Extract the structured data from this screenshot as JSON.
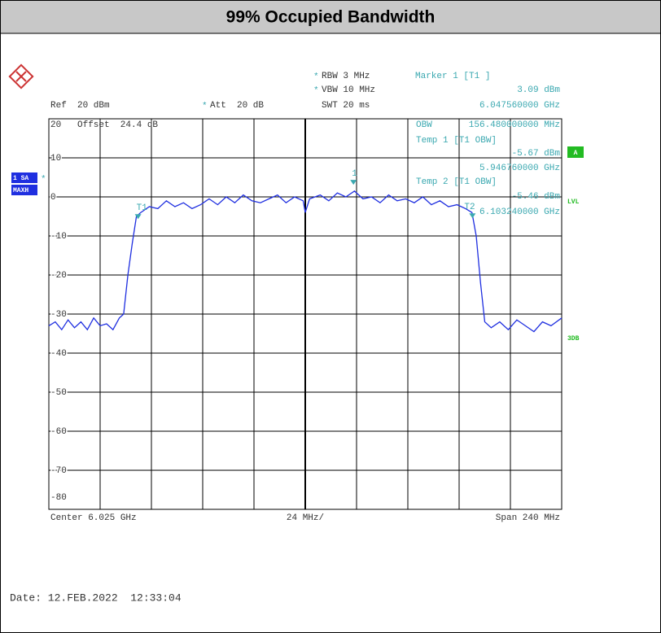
{
  "chart_data": {
    "type": "line",
    "title": "99% Occupied Bandwidth",
    "rbw": "RBW 3 MHz",
    "vbw": "VBW 10 MHz",
    "swt": "SWT 20 ms",
    "ref": "Ref  20 dBm",
    "att": "Att  20 dB",
    "offset": "Offset  24.4 dB",
    "marker_header": "Marker 1 [T1 ]",
    "obw_label": "OBW",
    "obw_value": "156.480000000 MHz",
    "markers": [
      {
        "label": "1",
        "x": 6047.56,
        "x_label": "6.047560000 GHz",
        "value": 3.09,
        "value_label": "3.09 dBm"
      },
      {
        "label": "T1",
        "header": "Temp 1 [T1 OBW]",
        "x": 5946.76,
        "x_label": "5.946760000 GHz",
        "value": -5.67,
        "value_label": "-5.67 dBm"
      },
      {
        "label": "T2",
        "header": "Temp 2 [T1 OBW]",
        "x": 6103.24,
        "x_label": "6.103240000 GHz",
        "value": -5.46,
        "value_label": "-5.46 dBm"
      }
    ],
    "side_labels": {
      "trace": "1 SA",
      "mode": "MAXH",
      "a": "A",
      "lvl": "LVL",
      "db": "3DB"
    },
    "center": "Center 6.025 GHz",
    "div": "24 MHz/",
    "span": "Span 240 MHz",
    "date": "Date: 12.FEB.2022  12:33:04",
    "xlim": [
      5905,
      6145
    ],
    "ylim": [
      -80,
      20
    ],
    "yticks": [
      20,
      10,
      0,
      -10,
      -20,
      -30,
      -40,
      -50,
      -60,
      -70,
      -80
    ],
    "grid": true,
    "x": [
      5905,
      5908,
      5911,
      5914,
      5917,
      5920,
      5923,
      5926,
      5929,
      5932,
      5935,
      5938,
      5940,
      5942,
      5944,
      5946,
      5948,
      5952,
      5956,
      5960,
      5964,
      5968,
      5972,
      5976,
      5980,
      5984,
      5988,
      5992,
      5996,
      6000,
      6004,
      6008,
      6012,
      6016,
      6020,
      6024,
      6025,
      6027,
      6032,
      6036,
      6040,
      6044,
      6048,
      6052,
      6056,
      6060,
      6064,
      6068,
      6072,
      6076,
      6080,
      6084,
      6088,
      6092,
      6096,
      6100,
      6103,
      6105,
      6107,
      6109,
      6112,
      6116,
      6120,
      6124,
      6128,
      6132,
      6136,
      6140,
      6145
    ],
    "series": [
      {
        "color": "#1f2fe0",
        "values": [
          -33,
          -32,
          -34,
          -31.5,
          -33.5,
          -32,
          -34,
          -31,
          -33,
          -32.5,
          -34,
          -31,
          -30,
          -20,
          -12,
          -5,
          -4,
          -2.5,
          -3,
          -1,
          -2.5,
          -1.5,
          -3,
          -2,
          -0.5,
          -2,
          0,
          -1.5,
          0.5,
          -1,
          -1.5,
          -0.5,
          0.5,
          -1.5,
          0,
          -1,
          -4,
          -0.5,
          0.5,
          -1,
          1,
          0,
          1.5,
          -0.5,
          0,
          -1.5,
          0.5,
          -1,
          -0.5,
          -1.5,
          0,
          -2,
          -1,
          -2.5,
          -2,
          -3,
          -4,
          -10,
          -22,
          -32,
          -33.5,
          -32,
          -34,
          -31.5,
          -33,
          -34.5,
          -32,
          -33,
          -31
        ]
      }
    ]
  }
}
